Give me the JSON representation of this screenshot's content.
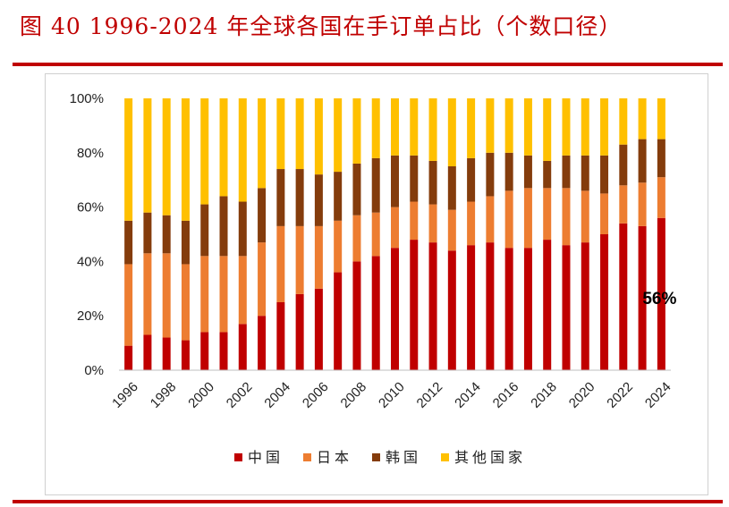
{
  "title": "图 40  1996-2024 年全球各国在手订单占比（个数口径）",
  "chart_data": {
    "type": "bar",
    "stacked": true,
    "categories": [
      "1996",
      "1997",
      "1998",
      "1999",
      "2000",
      "2001",
      "2002",
      "2003",
      "2004",
      "2005",
      "2006",
      "2007",
      "2008",
      "2009",
      "2010",
      "2011",
      "2012",
      "2013",
      "2014",
      "2015",
      "2016",
      "2017",
      "2018",
      "2019",
      "2020",
      "2021",
      "2022",
      "2023",
      "2024"
    ],
    "x_tick_labels": [
      "1996",
      "1998",
      "2000",
      "2002",
      "2004",
      "2006",
      "2008",
      "2010",
      "2012",
      "2014",
      "2016",
      "2018",
      "2020",
      "2022",
      "2024"
    ],
    "y_tick_labels": [
      "0%",
      "20%",
      "40%",
      "60%",
      "80%",
      "100%"
    ],
    "ylim": [
      0,
      100
    ],
    "series": [
      {
        "name": "中国",
        "color": "#c00000",
        "values": [
          9,
          13,
          12,
          11,
          14,
          14,
          17,
          20,
          25,
          28,
          30,
          36,
          40,
          42,
          45,
          48,
          47,
          44,
          46,
          47,
          45,
          45,
          48,
          46,
          47,
          50,
          54,
          53,
          56
        ]
      },
      {
        "name": "日本",
        "color": "#ed7d31",
        "values": [
          30,
          30,
          31,
          28,
          28,
          28,
          25,
          27,
          28,
          25,
          23,
          19,
          17,
          16,
          15,
          14,
          14,
          15,
          16,
          17,
          21,
          22,
          19,
          21,
          19,
          15,
          14,
          16,
          15
        ]
      },
      {
        "name": "韩国",
        "color": "#843c0c",
        "values": [
          16,
          15,
          14,
          16,
          19,
          22,
          20,
          20,
          21,
          21,
          19,
          18,
          19,
          20,
          19,
          17,
          16,
          16,
          16,
          16,
          14,
          12,
          10,
          12,
          13,
          14,
          15,
          16,
          14
        ]
      },
      {
        "name": "其他国家",
        "color": "#ffc000",
        "values": [
          45,
          42,
          43,
          45,
          39,
          36,
          38,
          33,
          26,
          26,
          28,
          27,
          24,
          22,
          21,
          21,
          23,
          25,
          22,
          20,
          20,
          21,
          23,
          21,
          21,
          21,
          17,
          15,
          15
        ]
      }
    ],
    "annotations": [
      {
        "text": "56%",
        "category": "2024"
      }
    ],
    "legend": "bottom",
    "grid": false
  }
}
